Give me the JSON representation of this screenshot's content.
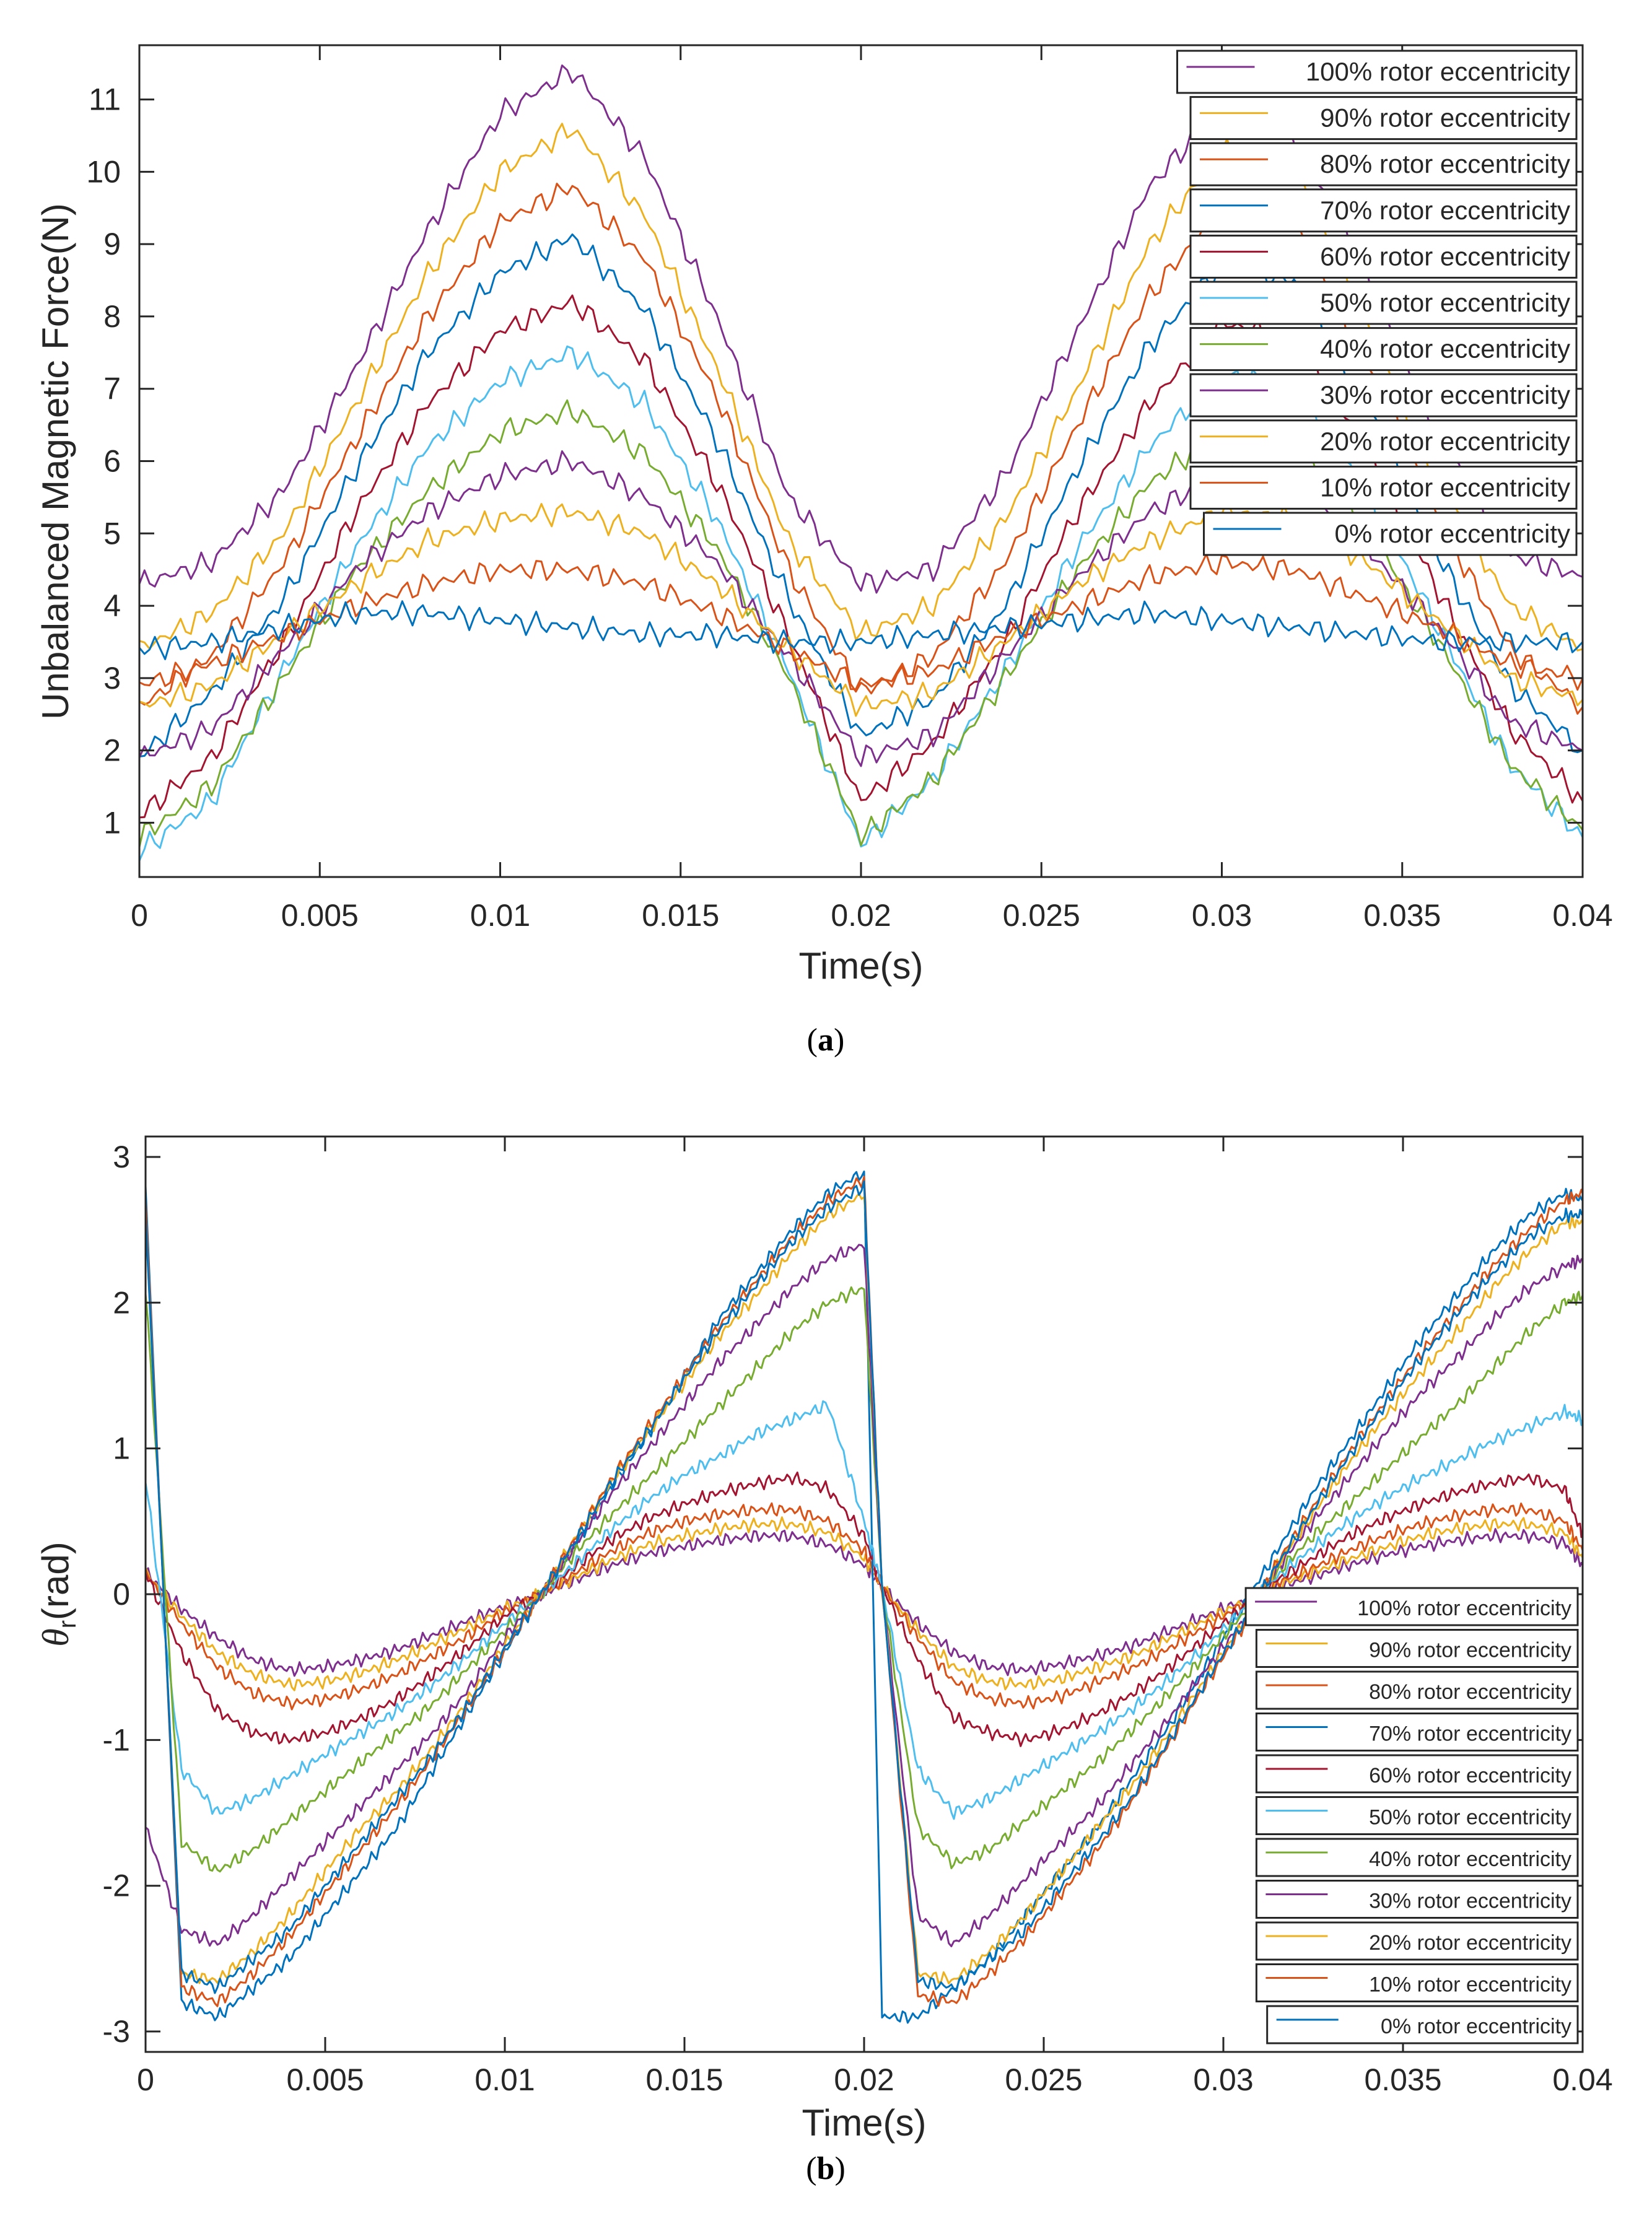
{
  "series_colors": [
    "#7E2F8E",
    "#EDB120",
    "#D95319",
    "#0072BD",
    "#A2142F",
    "#4DBEEE",
    "#77AC30",
    "#7E2F8E",
    "#EDB120",
    "#D95319",
    "#0072BD"
  ],
  "chart_data": [
    {
      "id": "a",
      "type": "line",
      "caption": "a",
      "title": "",
      "xlabel": "Time(s)",
      "ylabel": "Unbalanced Magnetic Force(N)",
      "xlim": [
        0,
        0.04
      ],
      "ylim": [
        0.25,
        11.75
      ],
      "xticks": [
        "0",
        "0.005",
        "0.01",
        "0.015",
        "0.02",
        "0.025",
        "0.03",
        "0.035",
        "0.04"
      ],
      "yticks": [
        "1",
        "2",
        "3",
        "4",
        "5",
        "6",
        "7",
        "8",
        "9",
        "10",
        "11"
      ],
      "legend_position": "top-right",
      "x": [
        0,
        0.002,
        0.004,
        0.006,
        0.008,
        0.01,
        0.012,
        0.014,
        0.016,
        0.018,
        0.02,
        0.022,
        0.024,
        0.026,
        0.028,
        0.03,
        0.032,
        0.034,
        0.036,
        0.038,
        0.04
      ],
      "series": [
        {
          "name": "100% rotor eccentricity",
          "values": [
            4.3,
            4.6,
            5.6,
            7.3,
            9.2,
            10.8,
            11.4,
            10.2,
            8.0,
            5.5,
            4.3,
            4.5,
            5.8,
            7.8,
            9.8,
            10.9,
            10.5,
            8.6,
            6.4,
            4.7,
            4.4
          ]
        },
        {
          "name": "90% rotor eccentricity",
          "values": [
            3.4,
            3.9,
            5.0,
            6.8,
            8.6,
            10.0,
            10.6,
            9.4,
            7.3,
            4.9,
            3.6,
            4.0,
            5.2,
            7.0,
            9.0,
            10.3,
            10.0,
            8.0,
            5.7,
            4.0,
            3.4
          ]
        },
        {
          "name": "80% rotor eccentricity",
          "values": [
            2.6,
            3.3,
            4.6,
            6.3,
            8.0,
            9.3,
            9.8,
            8.8,
            6.9,
            4.5,
            2.8,
            3.3,
            4.6,
            6.5,
            8.3,
            9.5,
            9.3,
            7.4,
            5.2,
            3.4,
            2.6
          ]
        },
        {
          "name": "70% rotor eccentricity",
          "values": [
            1.9,
            2.8,
            4.1,
            5.9,
            7.5,
            8.6,
            9.1,
            8.1,
            6.3,
            4.1,
            2.2,
            2.7,
            4.0,
            5.9,
            7.6,
            8.7,
            8.5,
            6.8,
            4.7,
            2.9,
            2.0
          ]
        },
        {
          "name": "60% rotor eccentricity",
          "values": [
            1.1,
            1.9,
            3.5,
            5.3,
            6.8,
            7.8,
            8.2,
            7.4,
            5.7,
            3.6,
            1.3,
            2.1,
            3.5,
            5.3,
            6.8,
            7.9,
            7.7,
            6.2,
            4.2,
            2.3,
            1.3
          ]
        },
        {
          "name": "50% rotor eccentricity",
          "values": [
            0.6,
            1.3,
            3.1,
            4.8,
            6.2,
            7.1,
            7.5,
            6.8,
            5.2,
            3.1,
            0.7,
            1.6,
            3.1,
            4.8,
            6.2,
            7.2,
            7.0,
            5.6,
            3.7,
            1.8,
            0.8
          ]
        },
        {
          "name": "40% rotor eccentricity",
          "values": [
            0.8,
            1.5,
            3.0,
            4.5,
            5.6,
            6.4,
            6.7,
            6.1,
            4.8,
            3.0,
            0.8,
            1.6,
            3.0,
            4.5,
            5.7,
            6.4,
            6.3,
            5.1,
            3.5,
            1.8,
            0.9
          ]
        },
        {
          "name": "30% rotor eccentricity",
          "values": [
            1.9,
            2.3,
            3.4,
            4.5,
            5.3,
            5.8,
            6.0,
            5.5,
            4.6,
            3.3,
            1.9,
            2.2,
            3.3,
            4.4,
            5.3,
            5.8,
            5.7,
            4.8,
            3.7,
            2.4,
            2.0
          ]
        },
        {
          "name": "20% rotor eccentricity",
          "values": [
            2.6,
            2.9,
            3.6,
            4.3,
            4.9,
            5.2,
            5.3,
            5.0,
            4.3,
            3.4,
            2.6,
            2.8,
            3.5,
            4.3,
            4.9,
            5.3,
            5.2,
            4.6,
            3.8,
            3.0,
            2.7
          ]
        },
        {
          "name": "10% rotor eccentricity",
          "values": [
            2.9,
            3.2,
            3.6,
            4.0,
            4.3,
            4.5,
            4.5,
            4.3,
            3.9,
            3.4,
            2.9,
            3.1,
            3.6,
            4.0,
            4.4,
            4.6,
            4.5,
            4.1,
            3.7,
            3.2,
            3.0
          ]
        },
        {
          "name": "0% rotor eccentricity",
          "values": [
            3.4,
            3.5,
            3.7,
            3.9,
            3.9,
            3.8,
            3.7,
            3.6,
            3.6,
            3.5,
            3.5,
            3.6,
            3.7,
            3.8,
            3.9,
            3.8,
            3.7,
            3.6,
            3.5,
            3.5,
            3.5
          ]
        }
      ]
    },
    {
      "id": "b",
      "type": "line",
      "caption": "b",
      "title": "",
      "xlabel": "Time(s)",
      "ylabel_symbol": "θ",
      "ylabel_subscript": "r",
      "ylabel_unit": "(rad)",
      "xlim": [
        0,
        0.04
      ],
      "ylim": [
        -3.14,
        3.14
      ],
      "xticks": [
        "0",
        "0.005",
        "0.01",
        "0.015",
        "0.02",
        "0.025",
        "0.03",
        "0.035",
        "0.04"
      ],
      "yticks": [
        "-3",
        "-2",
        "-1",
        "0",
        "1",
        "2",
        "3"
      ],
      "legend_position": "bottom-right",
      "x": [
        0,
        0.001,
        0.002,
        0.003,
        0.004,
        0.005,
        0.006,
        0.007,
        0.008,
        0.009,
        0.01,
        0.011,
        0.012,
        0.013,
        0.014,
        0.015,
        0.016,
        0.017,
        0.018,
        0.019,
        0.02,
        0.0205,
        0.0215,
        0.0225,
        0.0235,
        0.0245,
        0.0255,
        0.0265,
        0.0275,
        0.0285,
        0.0295,
        0.0305,
        0.0315,
        0.0325,
        0.0335,
        0.0345,
        0.0355,
        0.0365,
        0.0375,
        0.0385,
        0.0395,
        0.04
      ],
      "series": [
        {
          "name": "100% rotor eccentricity",
          "values": [
            0.15,
            -0.1,
            -0.3,
            -0.45,
            -0.52,
            -0.5,
            -0.45,
            -0.38,
            -0.28,
            -0.18,
            -0.08,
            0.0,
            0.1,
            0.2,
            0.28,
            0.33,
            0.37,
            0.4,
            0.4,
            0.34,
            0.2,
            0.05,
            -0.2,
            -0.4,
            -0.5,
            -0.52,
            -0.48,
            -0.42,
            -0.35,
            -0.25,
            -0.15,
            -0.05,
            0.05,
            0.12,
            0.2,
            0.27,
            0.33,
            0.37,
            0.4,
            0.4,
            0.35,
            0.2
          ]
        },
        {
          "name": "90% rotor eccentricity",
          "values": [
            0.15,
            -0.15,
            -0.4,
            -0.55,
            -0.62,
            -0.6,
            -0.54,
            -0.45,
            -0.34,
            -0.22,
            -0.1,
            0.0,
            0.12,
            0.24,
            0.34,
            0.4,
            0.45,
            0.48,
            0.48,
            0.42,
            0.25,
            0.05,
            -0.25,
            -0.5,
            -0.6,
            -0.62,
            -0.58,
            -0.5,
            -0.42,
            -0.3,
            -0.18,
            -0.06,
            0.06,
            0.15,
            0.24,
            0.32,
            0.4,
            0.45,
            0.48,
            0.48,
            0.42,
            0.25
          ]
        },
        {
          "name": "80% rotor eccentricity",
          "values": [
            0.15,
            -0.2,
            -0.5,
            -0.68,
            -0.75,
            -0.72,
            -0.65,
            -0.55,
            -0.42,
            -0.28,
            -0.12,
            0.0,
            0.15,
            0.3,
            0.42,
            0.5,
            0.55,
            0.58,
            0.58,
            0.5,
            0.3,
            0.05,
            -0.3,
            -0.6,
            -0.72,
            -0.75,
            -0.7,
            -0.6,
            -0.5,
            -0.37,
            -0.22,
            -0.08,
            0.08,
            0.18,
            0.3,
            0.4,
            0.48,
            0.54,
            0.58,
            0.58,
            0.5,
            0.3
          ]
        },
        {
          "name": "70% rotor eccentricity",
          "values": [
            2.8,
            -2.8,
            -2.9,
            -2.7,
            -2.5,
            -2.2,
            -1.9,
            -1.6,
            -1.2,
            -0.8,
            -0.4,
            0.0,
            0.35,
            0.75,
            1.1,
            1.5,
            1.9,
            2.2,
            2.5,
            2.75,
            2.9,
            -2.9,
            -2.9,
            -2.7,
            -2.5,
            -2.2,
            -1.9,
            -1.6,
            -1.25,
            -0.9,
            -0.5,
            -0.1,
            0.3,
            0.7,
            1.05,
            1.4,
            1.75,
            2.05,
            2.35,
            2.6,
            2.75,
            2.7
          ]
        },
        {
          "name": "60% rotor eccentricity",
          "values": [
            0.15,
            -0.4,
            -0.8,
            -0.95,
            -1.0,
            -0.95,
            -0.85,
            -0.72,
            -0.55,
            -0.36,
            -0.15,
            0.0,
            0.2,
            0.38,
            0.52,
            0.62,
            0.7,
            0.76,
            0.8,
            0.72,
            0.4,
            0.05,
            -0.45,
            -0.85,
            -0.95,
            -1.0,
            -0.93,
            -0.82,
            -0.68,
            -0.5,
            -0.3,
            -0.1,
            0.1,
            0.25,
            0.4,
            0.52,
            0.62,
            0.7,
            0.76,
            0.8,
            0.72,
            0.4
          ]
        },
        {
          "name": "50% rotor eccentricity",
          "values": [
            0.8,
            -1.2,
            -1.5,
            -1.4,
            -1.25,
            -1.1,
            -0.95,
            -0.8,
            -0.62,
            -0.42,
            -0.2,
            0.0,
            0.22,
            0.45,
            0.65,
            0.82,
            0.95,
            1.1,
            1.2,
            1.3,
            0.5,
            0.05,
            -1.2,
            -1.5,
            -1.4,
            -1.25,
            -1.1,
            -0.95,
            -0.78,
            -0.58,
            -0.36,
            -0.12,
            0.12,
            0.32,
            0.5,
            0.66,
            0.8,
            0.92,
            1.05,
            1.15,
            1.25,
            1.2
          ]
        },
        {
          "name": "40% rotor eccentricity",
          "values": [
            2.1,
            -1.7,
            -1.9,
            -1.75,
            -1.55,
            -1.35,
            -1.15,
            -0.95,
            -0.75,
            -0.5,
            -0.25,
            0.0,
            0.3,
            0.55,
            0.8,
            1.05,
            1.3,
            1.55,
            1.8,
            2.0,
            2.1,
            0.05,
            -1.6,
            -1.85,
            -1.75,
            -1.55,
            -1.35,
            -1.15,
            -0.92,
            -0.68,
            -0.42,
            -0.15,
            0.15,
            0.4,
            0.62,
            0.85,
            1.08,
            1.3,
            1.55,
            1.8,
            2.0,
            2.05
          ]
        },
        {
          "name": "30% rotor eccentricity",
          "values": [
            -1.6,
            -2.3,
            -2.4,
            -2.2,
            -1.95,
            -1.7,
            -1.45,
            -1.2,
            -0.95,
            -0.65,
            -0.3,
            0.0,
            0.35,
            0.7,
            1.0,
            1.3,
            1.6,
            1.85,
            2.1,
            2.3,
            2.4,
            0.05,
            -2.2,
            -2.4,
            -2.2,
            -1.95,
            -1.7,
            -1.45,
            -1.15,
            -0.85,
            -0.52,
            -0.2,
            0.18,
            0.5,
            0.8,
            1.1,
            1.38,
            1.62,
            1.88,
            2.1,
            2.25,
            2.3
          ]
        },
        {
          "name": "20% rotor eccentricity",
          "values": [
            2.6,
            -2.6,
            -2.65,
            -2.45,
            -2.2,
            -1.9,
            -1.6,
            -1.35,
            -1.05,
            -0.72,
            -0.35,
            0.0,
            0.4,
            0.78,
            1.12,
            1.45,
            1.78,
            2.05,
            2.35,
            2.6,
            2.75,
            0.05,
            -2.6,
            -2.65,
            -2.45,
            -2.2,
            -1.9,
            -1.6,
            -1.3,
            -0.95,
            -0.58,
            -0.22,
            0.2,
            0.55,
            0.9,
            1.22,
            1.52,
            1.8,
            2.1,
            2.35,
            2.55,
            2.55
          ]
        },
        {
          "name": "10% rotor eccentricity",
          "values": [
            2.7,
            -2.7,
            -2.8,
            -2.6,
            -2.35,
            -2.05,
            -1.75,
            -1.45,
            -1.12,
            -0.76,
            -0.38,
            0.0,
            0.4,
            0.8,
            1.15,
            1.5,
            1.85,
            2.15,
            2.45,
            2.7,
            2.85,
            0.05,
            -2.75,
            -2.8,
            -2.6,
            -2.35,
            -2.05,
            -1.75,
            -1.4,
            -1.02,
            -0.62,
            -0.24,
            0.22,
            0.6,
            0.97,
            1.32,
            1.65,
            1.95,
            2.25,
            2.5,
            2.7,
            2.75
          ]
        },
        {
          "name": "0% rotor eccentricity",
          "values": [
            2.6,
            -2.6,
            -2.7,
            -2.5,
            -2.3,
            -2.0,
            -1.7,
            -1.4,
            -1.1,
            -0.75,
            -0.37,
            0.0,
            0.38,
            0.78,
            1.12,
            1.48,
            1.82,
            2.12,
            2.42,
            2.65,
            2.8,
            0.05,
            -2.65,
            -2.7,
            -2.5,
            -2.3,
            -2.0,
            -1.7,
            -1.38,
            -1.0,
            -0.6,
            -0.22,
            0.2,
            0.58,
            0.95,
            1.3,
            1.62,
            1.92,
            2.2,
            2.45,
            2.6,
            2.6
          ]
        }
      ]
    }
  ]
}
